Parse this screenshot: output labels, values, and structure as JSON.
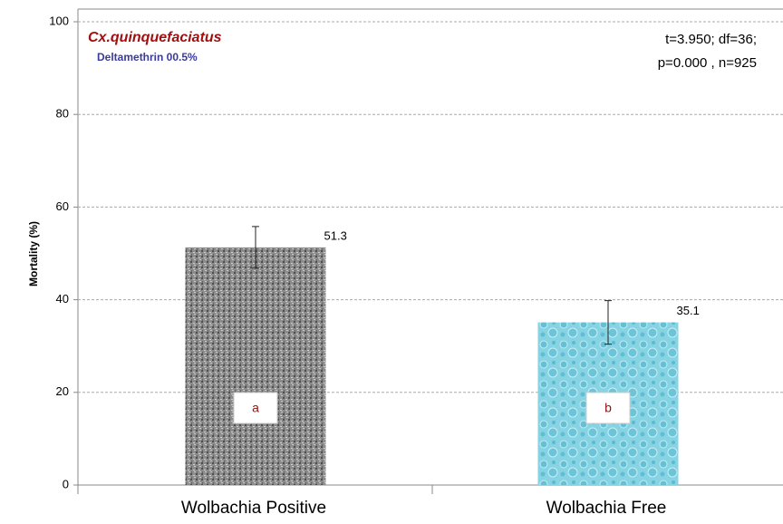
{
  "chart_data": {
    "type": "bar",
    "y_label": "Mortality (%)",
    "annotations": [
      "Cx.quinquefaciatus",
      "Deltamethrin 00.5%",
      "t=3.950; df=36;",
      "p=0.000 , n=925"
    ],
    "categories": [
      "Wolbachia Positive",
      "Wolbachia Free"
    ],
    "values": [
      51.3,
      35.1
    ],
    "errors": [
      4.5,
      4.7
    ],
    "bar_letters": [
      "a",
      "b"
    ],
    "colors": [
      "#8c8c8c",
      "#86d3e3"
    ],
    "ylim": [
      0,
      100
    ],
    "yticks": [
      0,
      20,
      40,
      60,
      80,
      100
    ],
    "grid": true
  }
}
